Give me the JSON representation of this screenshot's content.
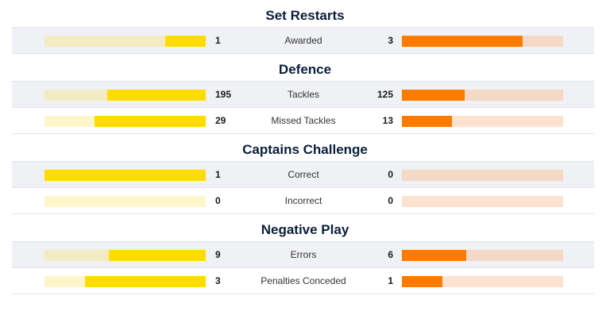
{
  "colors": {
    "home_fill": "#ffdc00",
    "home_track": "#fdf6cc",
    "away_fill": "#ff7a00",
    "away_track": "#fde3cf",
    "title": "#0b1f3a"
  },
  "sections": [
    {
      "title": "Set Restarts",
      "rows": [
        {
          "label": "Awarded",
          "home": "1",
          "away": "3",
          "home_share": 0.25,
          "away_share": 0.75
        }
      ]
    },
    {
      "title": "Defence",
      "rows": [
        {
          "label": "Tackles",
          "home": "195",
          "away": "125",
          "home_share": 0.61,
          "away_share": 0.39
        },
        {
          "label": "Missed Tackles",
          "home": "29",
          "away": "13",
          "home_share": 0.69,
          "away_share": 0.31
        }
      ]
    },
    {
      "title": "Captains Challenge",
      "rows": [
        {
          "label": "Correct",
          "home": "1",
          "away": "0",
          "home_share": 1.0,
          "away_share": 0.0
        },
        {
          "label": "Incorrect",
          "home": "0",
          "away": "0",
          "home_share": 0.0,
          "away_share": 0.0
        }
      ]
    },
    {
      "title": "Negative Play",
      "rows": [
        {
          "label": "Errors",
          "home": "9",
          "away": "6",
          "home_share": 0.6,
          "away_share": 0.4
        },
        {
          "label": "Penalties Conceded",
          "home": "3",
          "away": "1",
          "home_share": 0.75,
          "away_share": 0.25
        }
      ]
    }
  ]
}
